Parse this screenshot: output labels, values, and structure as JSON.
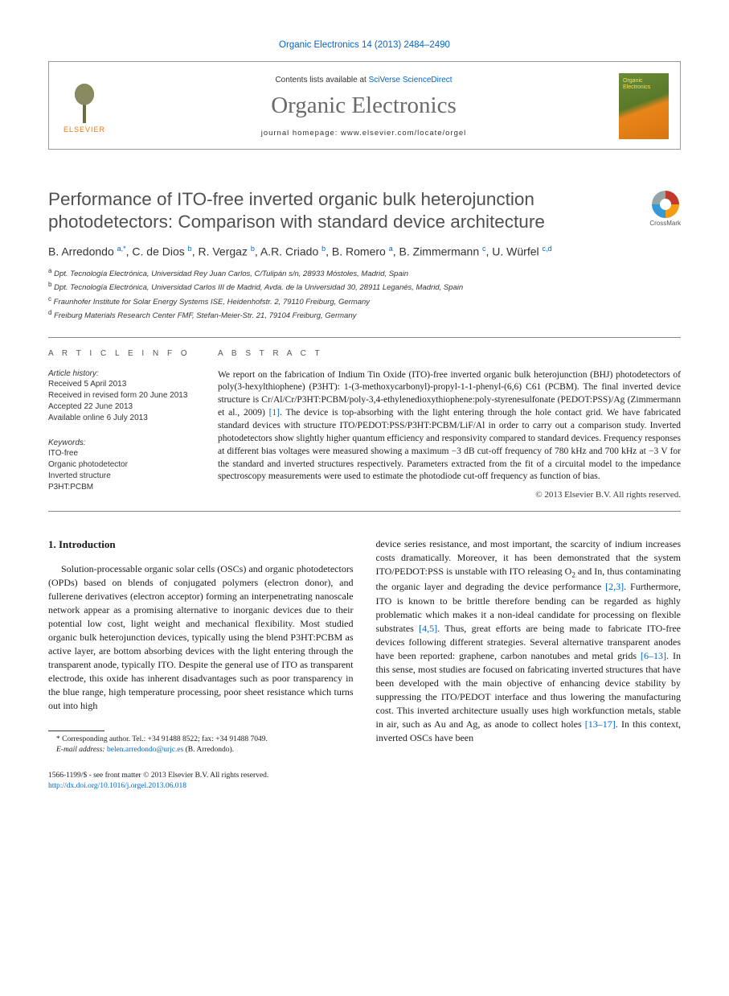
{
  "header": {
    "citation": "Organic Electronics 14 (2013) 2484–2490",
    "contents_prefix": "Contents lists available at ",
    "contents_link": "SciVerse ScienceDirect",
    "journal_name": "Organic Electronics",
    "homepage_label": "journal homepage: www.elsevier.com/locate/orgel",
    "publisher": "ELSEVIER"
  },
  "crossmark": "CrossMark",
  "title": "Performance of ITO-free inverted organic bulk heterojunction photodetectors: Comparison with standard device architecture",
  "authors_html": "B. Arredondo <sup>a,*</sup>, C. de Dios <sup>b</sup>, R. Vergaz <sup>b</sup>, A.R. Criado <sup>b</sup>, B. Romero <sup>a</sup>, B. Zimmermann <sup>c</sup>, U. Würfel <sup>c,d</sup>",
  "affiliations": {
    "a": "Dpt. Tecnología Electrónica, Universidad Rey Juan Carlos, C/Tulipán s/n, 28933 Móstoles, Madrid, Spain",
    "b": "Dpt. Tecnología Electrónica, Universidad Carlos III de Madrid, Avda. de la Universidad 30, 28911 Leganés, Madrid, Spain",
    "c": "Fraunhofer Institute for Solar Energy Systems ISE, Heidenhofstr. 2, 79110 Freiburg, Germany",
    "d": "Freiburg Materials Research Center FMF, Stefan-Meier-Str. 21, 79104 Freiburg, Germany"
  },
  "info": {
    "label": "A R T I C L E   I N F O",
    "history_head": "Article history:",
    "history": "Received 5 April 2013\nReceived in revised form 20 June 2013\nAccepted 22 June 2013\nAvailable online 6 July 2013",
    "keywords_head": "Keywords:",
    "keywords": "ITO-free\nOrganic photodetector\nInverted structure\nP3HT:PCBM"
  },
  "abstract": {
    "label": "A B S T R A C T",
    "text_html": "We report on the fabrication of Indium Tin Oxide (ITO)-free inverted organic bulk heterojunction (BHJ) photodetectors of poly(3-hexylthiophene) (P3HT): 1-(3-methoxycarbonyl)-propyl-1-1-phenyl-(6,6) C61 (PCBM). The final inverted device structure is Cr/Al/Cr/P3HT:PCBM/poly-3,4-ethylenedioxythiophene:poly-styrenesulfonate (PEDOT:PSS)/Ag (Zimmermann et al., 2009) <a>[1]</a>. The device is top-absorbing with the light entering through the hole contact grid. We have fabricated standard devices with structure ITO/PEDOT:PSS/P3HT:PCBM/LiF/Al in order to carry out a comparison study. Inverted photodetectors show slightly higher quantum efficiency and responsivity compared to standard devices. Frequency responses at different bias voltages were measured showing a maximum −3 dB cut-off frequency of 780 kHz and 700 kHz at −3 V for the standard and inverted structures respectively. Parameters extracted from the fit of a circuital model to the impedance spectroscopy measurements were used to estimate the photodiode cut-off frequency as function of bias.",
    "copyright": "© 2013 Elsevier B.V. All rights reserved."
  },
  "body": {
    "section_heading": "1. Introduction",
    "col1": "Solution-processable organic solar cells (OSCs) and organic photodetectors (OPDs) based on blends of conjugated polymers (electron donor), and fullerene derivatives (electron acceptor) forming an interpenetrating nanoscale network appear as a promising alternative to inorganic devices due to their potential low cost, light weight and mechanical flexibility. Most studied organic bulk heterojunction devices, typically using the blend P3HT:PCBM as active layer, are bottom absorbing devices with the light entering through the transparent anode, typically ITO. Despite the general use of ITO as transparent electrode, this oxide has inherent disadvantages such as poor transparency in the blue range, high temperature processing, poor sheet resistance which turns out into high",
    "col2_html": "device series resistance, and most important, the scarcity of indium increases costs dramatically. Moreover, it has been demonstrated that the system ITO/PEDOT:PSS is unstable with ITO releasing O<span class='sub'>2</span> and In, thus contaminating the organic layer and degrading the device performance <a>[2,3]</a>. Furthermore, ITO is known to be brittle therefore bending can be regarded as highly problematic which makes it a non-ideal candidate for processing on flexible substrates <a>[4,5]</a>. Thus, great efforts are being made to fabricate ITO-free devices following different strategies. Several alternative transparent anodes have been reported: graphene, carbon nanotubes and metal grids <a>[6–13]</a>. In this sense, most studies are focused on fabricating inverted structures that have been developed with the main objective of enhancing device stability by suppressing the ITO/PEDOT interface and thus lowering the manufacturing cost. This inverted architecture usually uses high workfunction metals, stable in air, such as Au and Ag, as anode to collect holes <a>[13–17]</a>. In this context, inverted OSCs have been"
  },
  "footnote": {
    "corr": "* Corresponding author. Tel.: +34 91488 8522; fax: +34 91488 7049.",
    "email_label": "E-mail address: ",
    "email": "belen.arredondo@urjc.es",
    "email_who": " (B. Arredondo)."
  },
  "footer": {
    "line1": "1566-1199/$ - see front matter © 2013 Elsevier B.V. All rights reserved.",
    "doi": "http://dx.doi.org/10.1016/j.orgel.2013.06.018"
  },
  "colors": {
    "link": "#0066cc",
    "title_gray": "#505050",
    "elsevier_orange": "#e67817"
  }
}
